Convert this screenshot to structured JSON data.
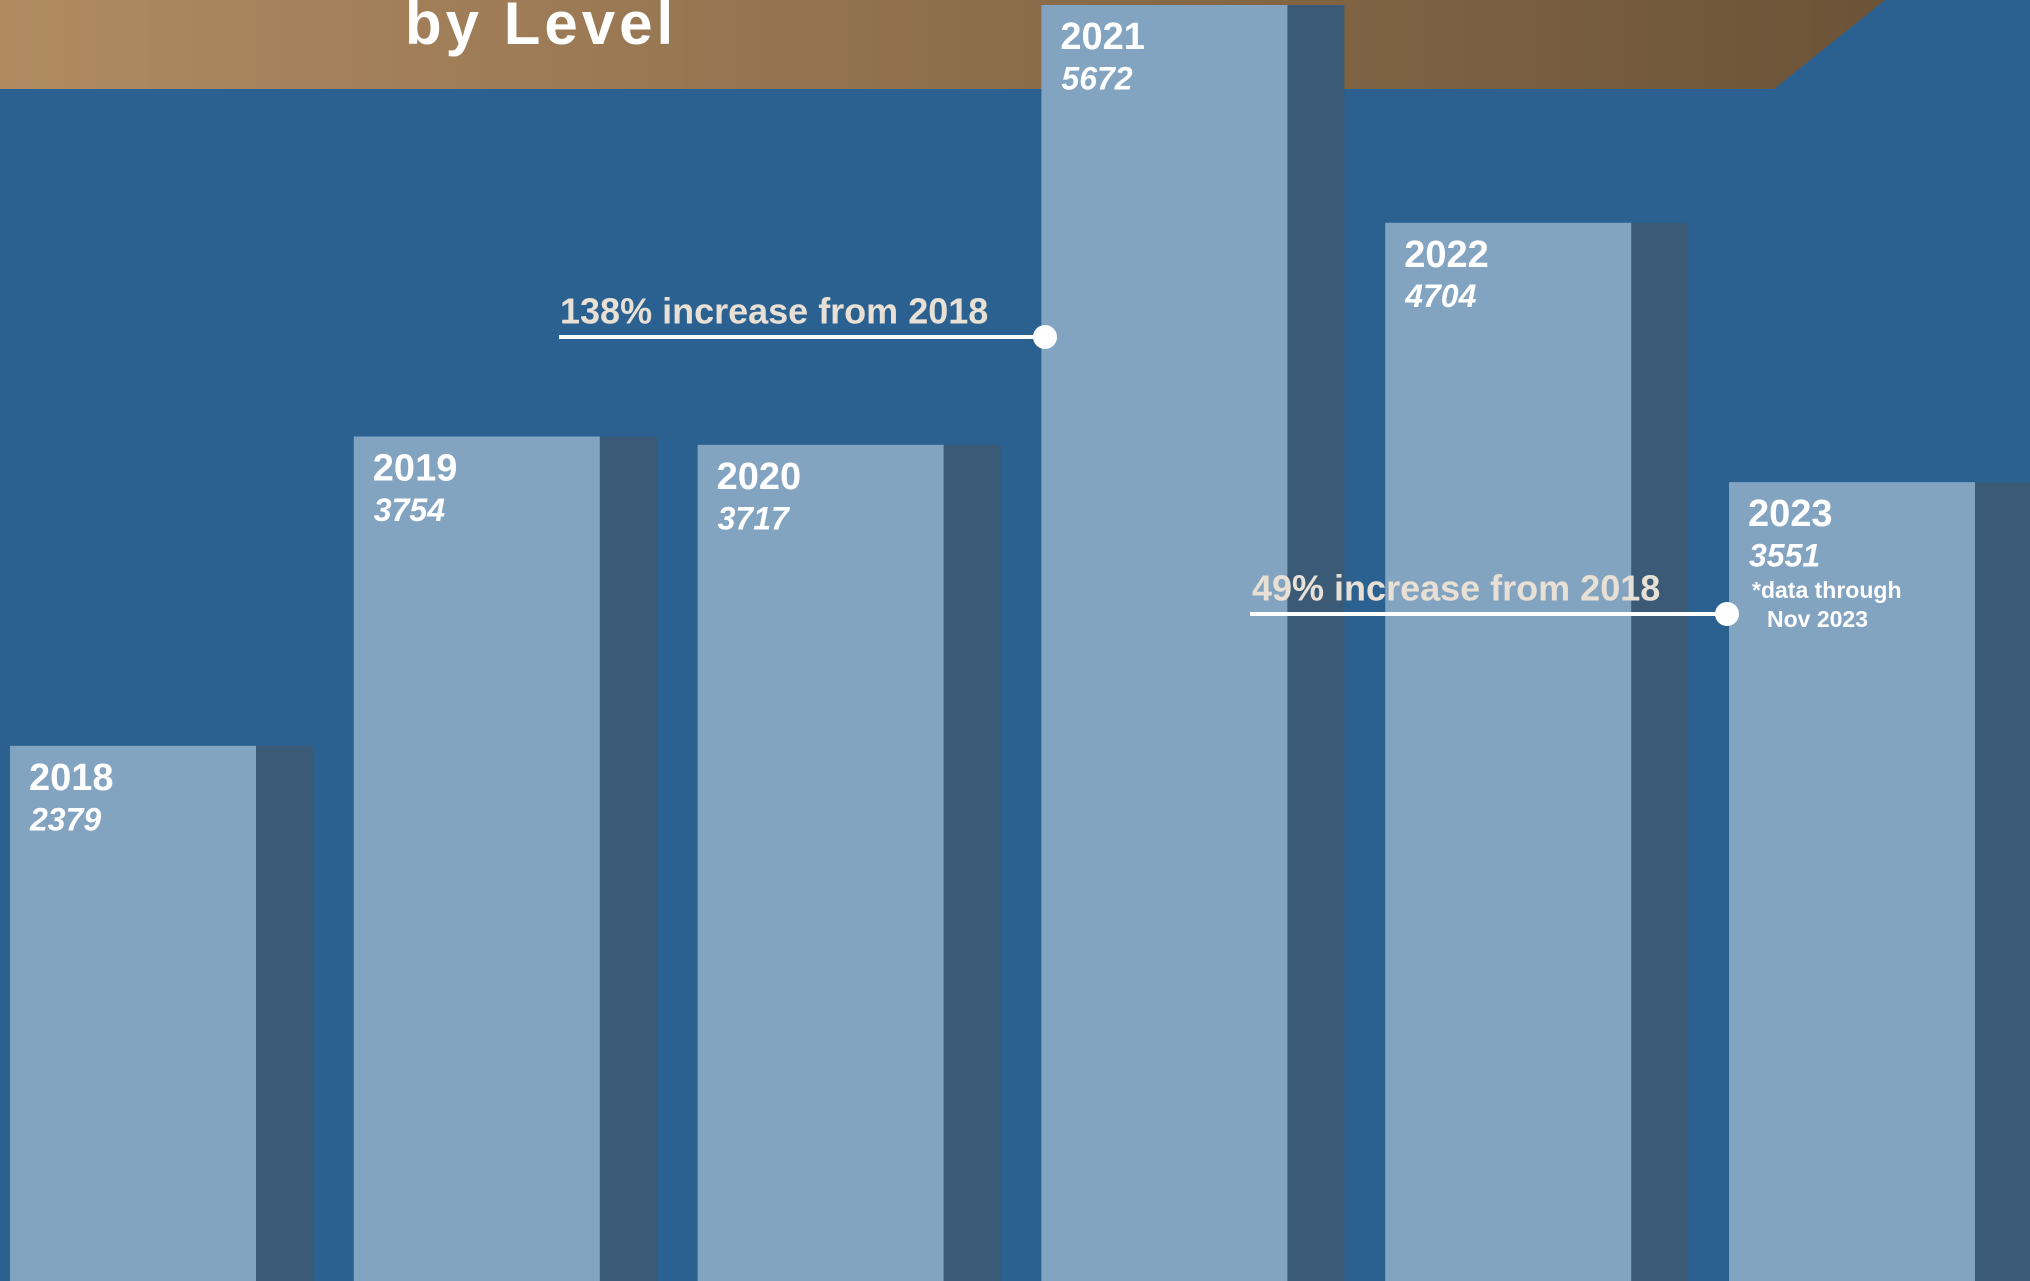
{
  "chart_data": {
    "type": "bar",
    "title": "by Level",
    "categories": [
      "2018",
      "2019",
      "2020",
      "2021",
      "2022",
      "2023"
    ],
    "values": [
      2379,
      3754,
      3717,
      5672,
      4704,
      3551
    ],
    "color": "#83a4c1",
    "shadow_color": "#3a5a75",
    "annotations": [
      "138% increase from 2018",
      "49% increase from 2018"
    ],
    "footnote": [
      "*data through",
      "Nov 2023"
    ]
  }
}
